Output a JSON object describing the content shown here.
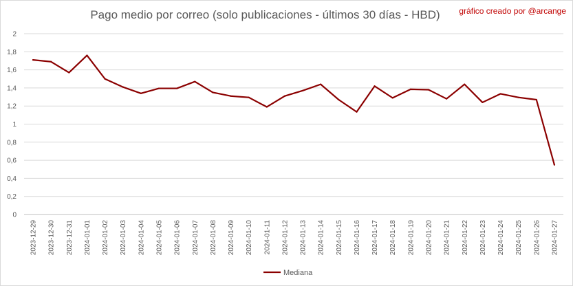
{
  "credit": "gráfico creado por @arcange",
  "chart_data": {
    "type": "line",
    "title": "Pago medio por correo (solo publicaciones - últimos 30 días - HBD)",
    "xlabel": "",
    "ylabel": "",
    "ylim": [
      0,
      2
    ],
    "yticks": [
      "0",
      "0,2",
      "0,4",
      "0,6",
      "0,8",
      "1",
      "1,2",
      "1,4",
      "1,6",
      "1,8",
      "2"
    ],
    "grid": true,
    "legend": "bottom",
    "color": "#8b0000",
    "x": [
      "2023-12-29",
      "2023-12-30",
      "2023-12-31",
      "2024-01-01",
      "2024-01-02",
      "2024-01-03",
      "2024-01-04",
      "2024-01-05",
      "2024-01-06",
      "2024-01-07",
      "2024-01-08",
      "2024-01-09",
      "2024-01-10",
      "2024-01-11",
      "2024-01-12",
      "2024-01-13",
      "2024-01-14",
      "2024-01-15",
      "2024-01-16",
      "2024-01-17",
      "2024-01-18",
      "2024-01-19",
      "2024-01-20",
      "2024-01-21",
      "2024-01-22",
      "2024-01-23",
      "2024-01-24",
      "2024-01-25",
      "2024-01-26",
      "2024-01-27"
    ],
    "series": [
      {
        "name": "Mediana",
        "values": [
          1.71,
          1.69,
          1.57,
          1.76,
          1.5,
          1.41,
          1.34,
          1.395,
          1.395,
          1.47,
          1.35,
          1.31,
          1.295,
          1.19,
          1.31,
          1.37,
          1.44,
          1.27,
          1.135,
          1.42,
          1.29,
          1.385,
          1.38,
          1.28,
          1.44,
          1.24,
          1.335,
          1.295,
          1.27,
          0.55
        ]
      }
    ]
  }
}
